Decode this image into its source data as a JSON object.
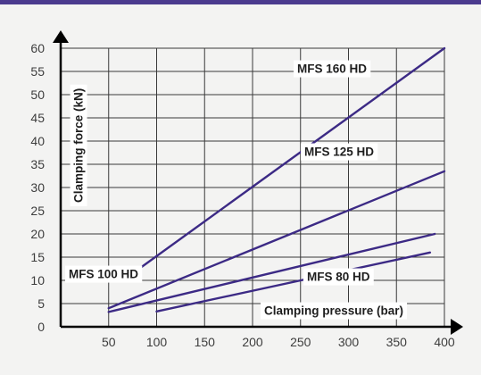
{
  "chart_data": {
    "type": "line",
    "xlabel": "Clamping pressure (bar)",
    "ylabel": "Clamping force (kN)",
    "xlim": [
      0,
      400
    ],
    "ylim": [
      0,
      60
    ],
    "x_ticks": [
      "50",
      "100",
      "150",
      "200",
      "250",
      "300",
      "350",
      "400"
    ],
    "y_ticks": [
      "0",
      "5",
      "10",
      "15",
      "20",
      "25",
      "30",
      "35",
      "40",
      "45",
      "50",
      "55",
      "60"
    ],
    "grid": true,
    "series": [
      {
        "name": "MFS 160 HD",
        "x": [
          65,
          400
        ],
        "y": [
          10,
          60
        ]
      },
      {
        "name": "MFS 125 HD",
        "x": [
          50,
          400
        ],
        "y": [
          4,
          33.5
        ]
      },
      {
        "name": "MFS 100 HD",
        "x": [
          50,
          390
        ],
        "y": [
          3.2,
          20
        ]
      },
      {
        "name": "MFS 80 HD",
        "x": [
          100,
          385
        ],
        "y": [
          3.3,
          16
        ]
      }
    ]
  },
  "colors": {
    "line": "#3c2a85",
    "top_rule": "#4b3a8e",
    "grid": "#3a3a3a",
    "axis": "#000000",
    "background": "#f3f3f2",
    "label_box": "#ffffff"
  }
}
